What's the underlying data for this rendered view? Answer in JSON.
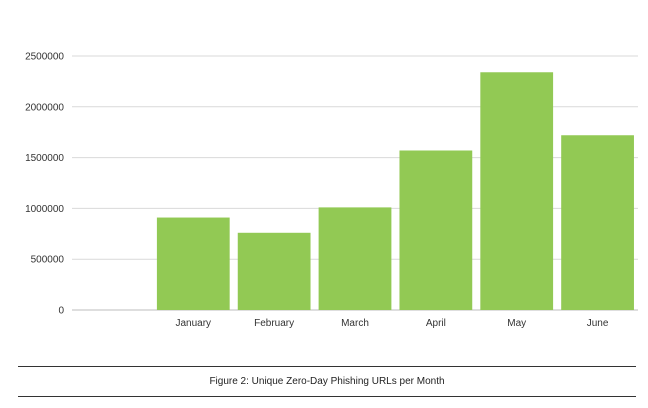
{
  "chart_data": {
    "type": "bar",
    "categories": [
      "January",
      "February",
      "March",
      "April",
      "May",
      "June"
    ],
    "values": [
      910000,
      760000,
      1010000,
      1570000,
      2340000,
      1720000
    ],
    "ylim": [
      0,
      2500000
    ],
    "yticks": [
      "0",
      "500000",
      "1000000",
      "1500000",
      "2000000",
      "2500000"
    ],
    "xlabel": "",
    "ylabel": "",
    "grid": true,
    "bar_color": "#92C954",
    "grid_color": "#d9d9d9"
  },
  "caption": "Figure 2:  Unique Zero-Day Phishing URLs per Month"
}
